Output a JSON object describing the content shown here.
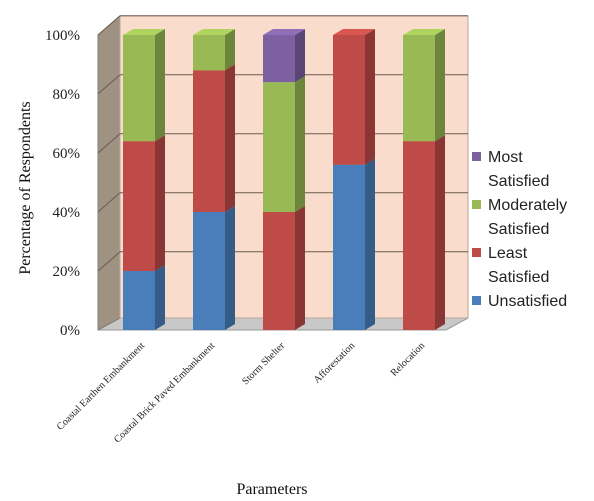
{
  "chart_data": {
    "type": "bar",
    "stacked": true,
    "percent": true,
    "three_d": true,
    "title": "",
    "xlabel": "Parameters",
    "ylabel": "Percentage of Respondents",
    "ylim": [
      0,
      100
    ],
    "yticks": [
      "0%",
      "20%",
      "40%",
      "60%",
      "80%",
      "100%"
    ],
    "grid": true,
    "legend_position": "right",
    "categories": [
      "Coastal Earthen Embankment",
      "Coastal Brick Paved Embankment",
      "Storm Shelter",
      "Afforestation",
      "Relocation"
    ],
    "series": [
      {
        "name": "Unsatisfied",
        "color": "#4a7ebb",
        "values": [
          20,
          40,
          0,
          56,
          0
        ]
      },
      {
        "name": "Least Satisfied",
        "color": "#be4b48",
        "values": [
          44,
          48,
          40,
          44,
          64
        ]
      },
      {
        "name": "Moderately Satisfied",
        "color": "#98b954",
        "values": [
          36,
          12,
          44,
          0,
          36
        ]
      },
      {
        "name": "Most Satisfied",
        "color": "#7d60a0",
        "values": [
          0,
          0,
          16,
          0,
          0
        ]
      }
    ],
    "legend_entries": [
      {
        "line1": "Most",
        "line2": "Satisfied",
        "color": "#7d60a0"
      },
      {
        "line1": "Moderately",
        "line2": "Satisfied",
        "color": "#98b954"
      },
      {
        "line1": "Least",
        "line2": "Satisfied",
        "color": "#be4b48"
      },
      {
        "line1": "Unsatisfied",
        "line2": "",
        "color": "#4a7ebb"
      }
    ]
  }
}
